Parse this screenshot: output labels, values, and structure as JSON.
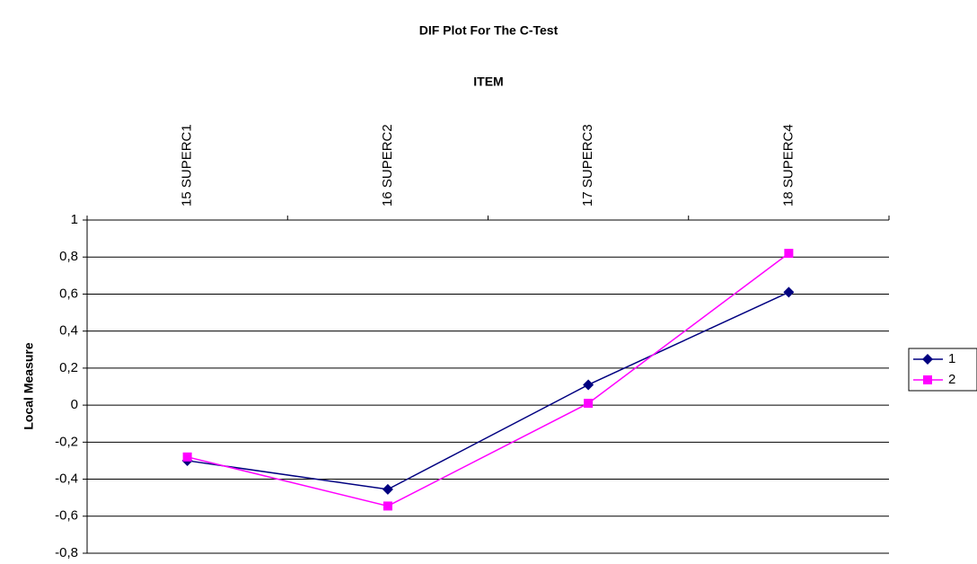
{
  "chart_data": {
    "type": "line",
    "title": "DIF Plot For The C-Test",
    "x_label": "ITEM",
    "y_label": "Local Measure",
    "categories": [
      "15 SUPERC1",
      "16 SUPERC2",
      "17 SUPERC3",
      "18 SUPERC4"
    ],
    "series": [
      {
        "name": "1",
        "color": "#000080",
        "marker": "diamond",
        "values": [
          -0.3,
          -0.455,
          0.11,
          0.61
        ]
      },
      {
        "name": "2",
        "color": "#ff00ff",
        "marker": "square",
        "values": [
          -0.28,
          -0.545,
          0.01,
          0.82
        ]
      }
    ],
    "ylim": [
      -0.8,
      1
    ],
    "yticks": [
      {
        "value": -0.8,
        "label": "-0,8"
      },
      {
        "value": -0.6,
        "label": "-0,6"
      },
      {
        "value": -0.4,
        "label": "-0,4"
      },
      {
        "value": -0.2,
        "label": "-0,2"
      },
      0,
      {
        "value": 0.2,
        "label": "0,2"
      },
      {
        "value": 0.4,
        "label": "0,4"
      },
      {
        "value": 0.6,
        "label": "0,6"
      },
      {
        "value": 0.8,
        "label": "0,8"
      },
      1
    ],
    "grid": true,
    "legend": "right"
  }
}
